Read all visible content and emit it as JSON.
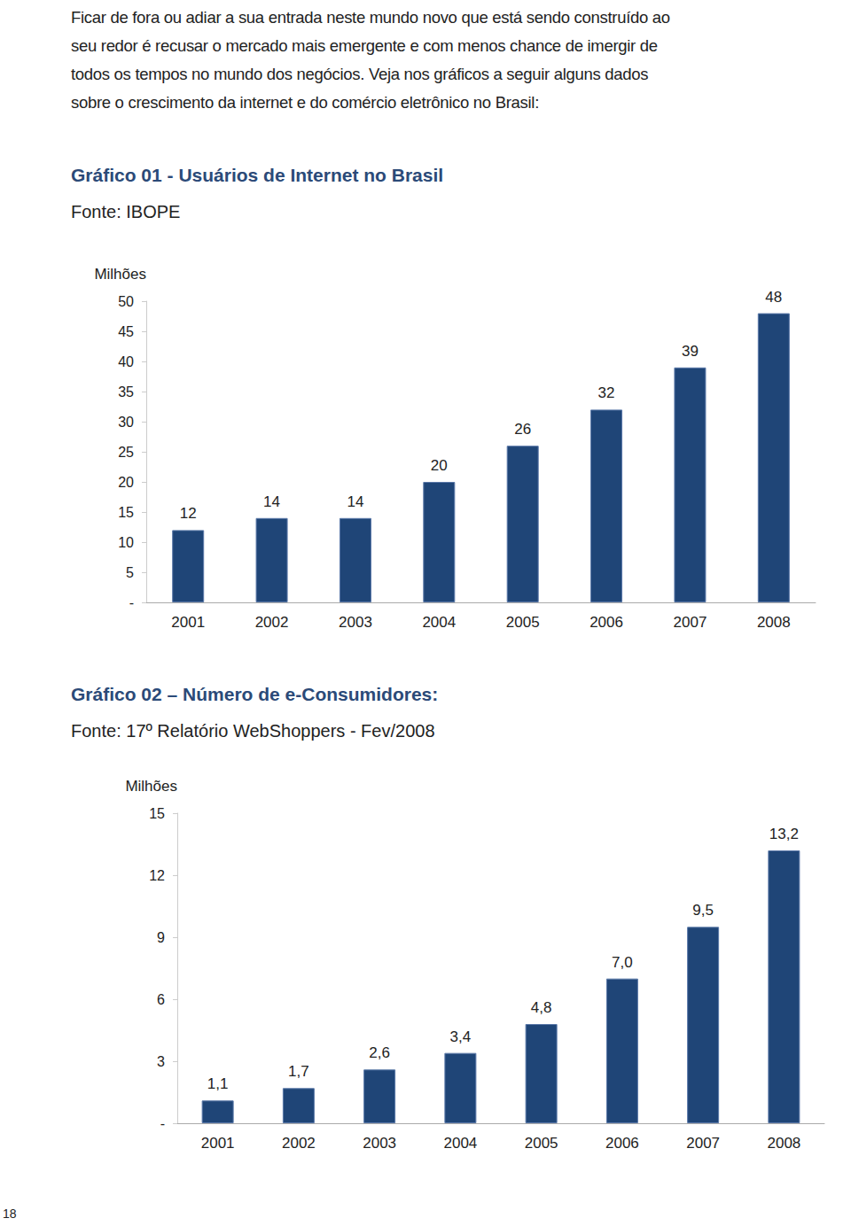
{
  "paragraph": "Ficar de fora ou adiar a sua entrada neste mundo novo que está sendo construído ao seu redor é recusar o mercado mais emergente e com menos chance de imergir de todos os tempos no mundo dos negócios. Veja nos gráficos a seguir alguns dados sobre o crescimento da internet e do comércio eletrônico no Brasil:",
  "page_number": "18",
  "chart_data": [
    {
      "type": "bar",
      "title": "Gráfico 01 - Usuários de Internet no Brasil",
      "subtitle": "Fonte: IBOPE",
      "y_label": "Milhões",
      "categories": [
        "2001",
        "2002",
        "2003",
        "2004",
        "2005",
        "2006",
        "2007",
        "2008"
      ],
      "values": [
        12,
        14,
        14,
        20,
        26,
        32,
        39,
        48
      ],
      "color": "#1f4577",
      "ylim": [
        0,
        50
      ],
      "yticks": [
        {
          "value": 0,
          "label": "-"
        },
        5,
        10,
        15,
        20,
        25,
        30,
        35,
        40,
        45,
        50
      ],
      "grid": false,
      "data_labels": true
    },
    {
      "type": "bar",
      "title": "Gráfico 02 – Número de e-Consumidores:",
      "subtitle": "Fonte: 17º Relatório WebShoppers  - Fev/2008",
      "y_label": "Milhões",
      "categories": [
        "2001",
        "2002",
        "2003",
        "2004",
        "2005",
        "2006",
        "2007",
        "2008"
      ],
      "values": [
        1.1,
        1.7,
        2.6,
        3.4,
        4.8,
        7.0,
        9.5,
        13.2
      ],
      "value_labels": [
        "1,1",
        "1,7",
        "2,6",
        "3,4",
        "4,8",
        "7,0",
        "9,5",
        "13,2"
      ],
      "color": "#1f4577",
      "ylim": [
        0,
        15
      ],
      "yticks": [
        {
          "value": 0,
          "label": "-"
        },
        3,
        6,
        9,
        12,
        15
      ],
      "grid": false,
      "data_labels": true
    }
  ]
}
